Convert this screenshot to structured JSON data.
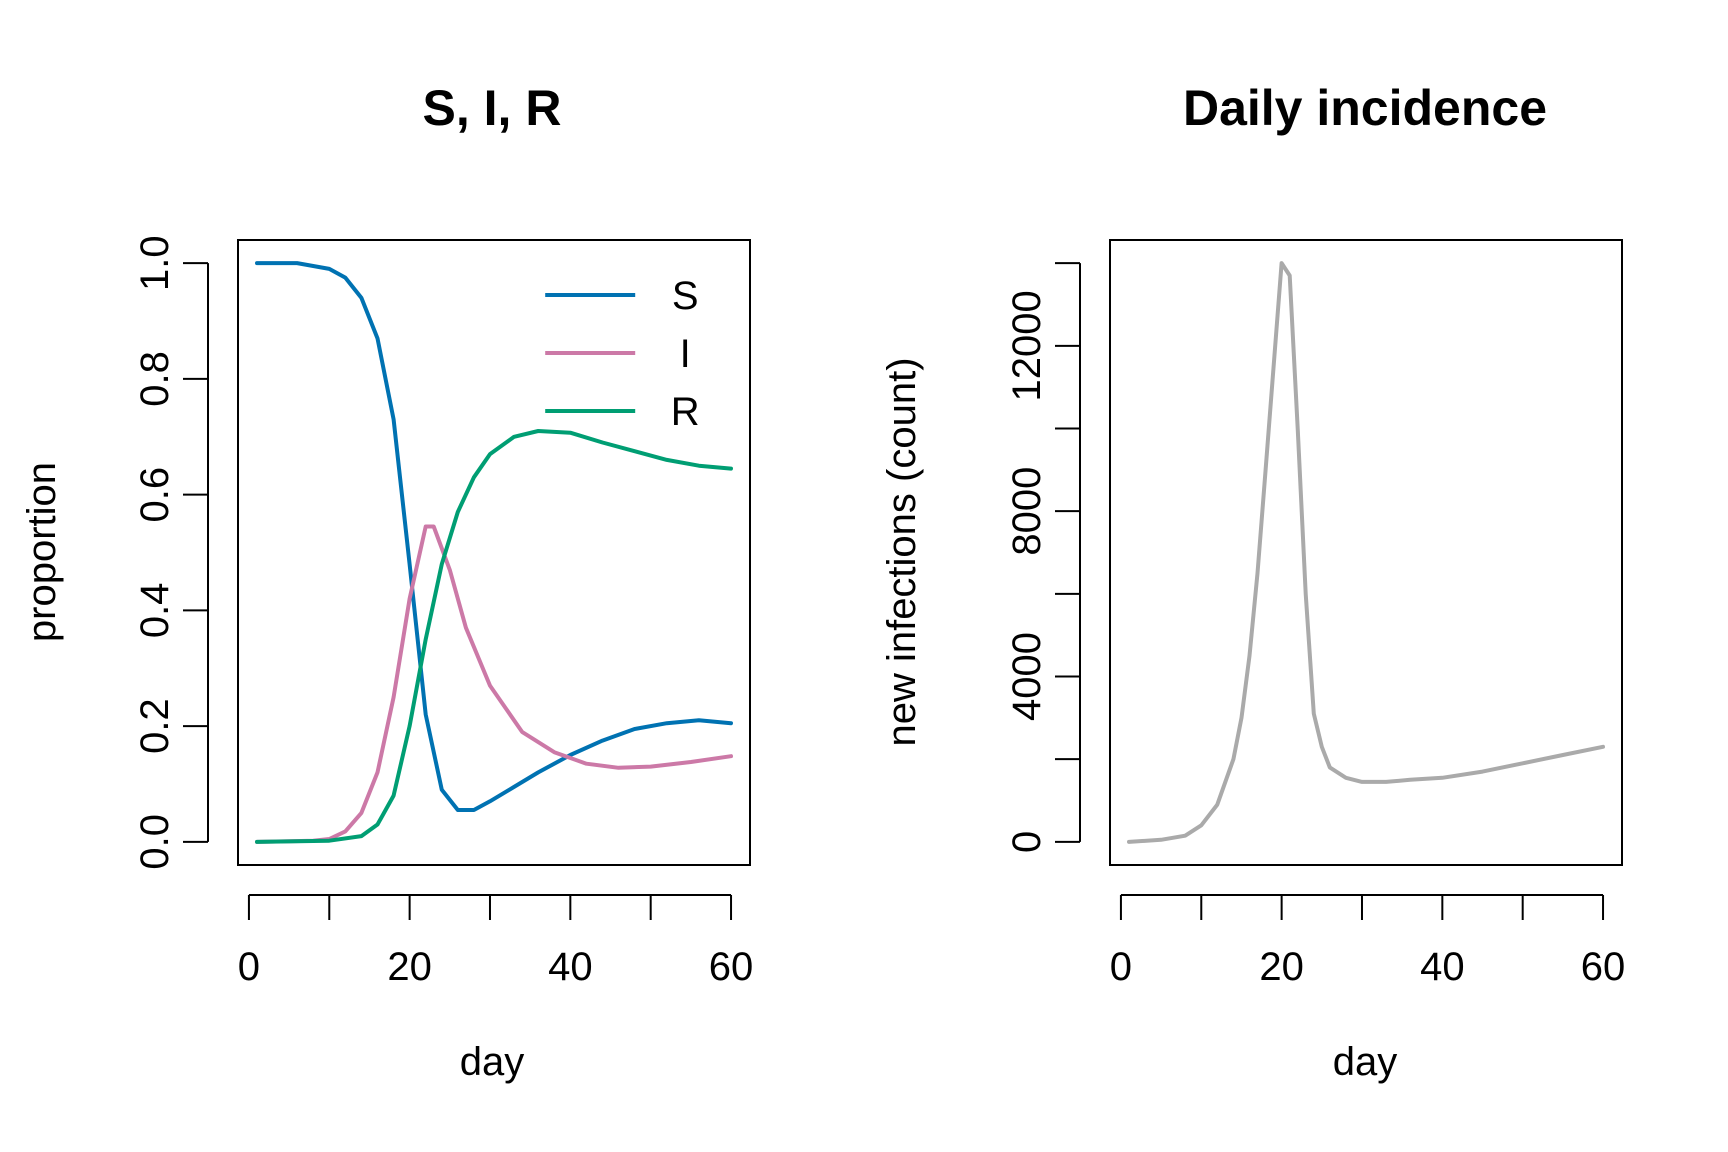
{
  "chart_data": [
    {
      "type": "line",
      "title": "S, I, R",
      "xlabel": "day",
      "ylabel": "proportion",
      "xlim": [
        1,
        60
      ],
      "ylim": [
        0,
        1
      ],
      "xticks": [
        0,
        20,
        40,
        60
      ],
      "yticks": [
        0,
        0.2,
        0.4,
        0.6,
        0.8,
        1
      ],
      "ytick_labels": [
        "0.0",
        "0.2",
        "0.4",
        "0.6",
        "0.8",
        "1.0"
      ],
      "grid": false,
      "legend": "top-right",
      "series": [
        {
          "name": "S",
          "color": "#0072B2",
          "points": [
            [
              1,
              1.0
            ],
            [
              6,
              1.0
            ],
            [
              10,
              0.99
            ],
            [
              12,
              0.975
            ],
            [
              14,
              0.94
            ],
            [
              16,
              0.87
            ],
            [
              18,
              0.73
            ],
            [
              20,
              0.48
            ],
            [
              22,
              0.22
            ],
            [
              24,
              0.09
            ],
            [
              26,
              0.055
            ],
            [
              28,
              0.055
            ],
            [
              30,
              0.07
            ],
            [
              33,
              0.095
            ],
            [
              36,
              0.12
            ],
            [
              40,
              0.15
            ],
            [
              44,
              0.175
            ],
            [
              48,
              0.195
            ],
            [
              52,
              0.205
            ],
            [
              56,
              0.21
            ],
            [
              60,
              0.205
            ]
          ]
        },
        {
          "name": "I",
          "color": "#CC79A7",
          "points": [
            [
              1,
              0.0
            ],
            [
              8,
              0.002
            ],
            [
              10,
              0.005
            ],
            [
              12,
              0.018
            ],
            [
              14,
              0.05
            ],
            [
              16,
              0.12
            ],
            [
              18,
              0.25
            ],
            [
              20,
              0.42
            ],
            [
              22,
              0.545
            ],
            [
              23,
              0.545
            ],
            [
              25,
              0.47
            ],
            [
              27,
              0.37
            ],
            [
              30,
              0.27
            ],
            [
              34,
              0.19
            ],
            [
              38,
              0.155
            ],
            [
              42,
              0.135
            ],
            [
              46,
              0.128
            ],
            [
              50,
              0.13
            ],
            [
              55,
              0.138
            ],
            [
              60,
              0.148
            ]
          ]
        },
        {
          "name": "R",
          "color": "#009E73",
          "points": [
            [
              1,
              0.0
            ],
            [
              10,
              0.002
            ],
            [
              14,
              0.01
            ],
            [
              16,
              0.03
            ],
            [
              18,
              0.08
            ],
            [
              20,
              0.2
            ],
            [
              22,
              0.35
            ],
            [
              24,
              0.48
            ],
            [
              26,
              0.57
            ],
            [
              28,
              0.63
            ],
            [
              30,
              0.67
            ],
            [
              33,
              0.7
            ],
            [
              36,
              0.71
            ],
            [
              40,
              0.707
            ],
            [
              44,
              0.69
            ],
            [
              48,
              0.675
            ],
            [
              52,
              0.66
            ],
            [
              56,
              0.65
            ],
            [
              60,
              0.645
            ]
          ]
        }
      ]
    },
    {
      "type": "line",
      "title": "Daily incidence",
      "xlabel": "day",
      "ylabel": "new infections (count)",
      "xlim": [
        1,
        60
      ],
      "ylim": [
        0,
        14000
      ],
      "xticks": [
        0,
        20,
        40,
        60
      ],
      "yticks": [
        0,
        2000,
        4000,
        6000,
        8000,
        10000,
        12000,
        14000
      ],
      "ytick_labels": [
        "0",
        "",
        "4000",
        "",
        "8000",
        "",
        "12000",
        ""
      ],
      "grid": false,
      "series": [
        {
          "color": "#AAAAAA",
          "points": [
            [
              1,
              0
            ],
            [
              5,
              50
            ],
            [
              8,
              150
            ],
            [
              10,
              400
            ],
            [
              12,
              900
            ],
            [
              14,
              2000
            ],
            [
              15,
              3000
            ],
            [
              16,
              4500
            ],
            [
              17,
              6500
            ],
            [
              18,
              9000
            ],
            [
              19,
              11500
            ],
            [
              20,
              14000
            ],
            [
              21,
              13700
            ],
            [
              22,
              10000
            ],
            [
              23,
              6000
            ],
            [
              24,
              3100
            ],
            [
              25,
              2300
            ],
            [
              26,
              1800
            ],
            [
              28,
              1550
            ],
            [
              30,
              1450
            ],
            [
              33,
              1450
            ],
            [
              36,
              1500
            ],
            [
              40,
              1550
            ],
            [
              45,
              1700
            ],
            [
              50,
              1900
            ],
            [
              55,
              2100
            ],
            [
              60,
              2300
            ]
          ]
        }
      ]
    }
  ]
}
